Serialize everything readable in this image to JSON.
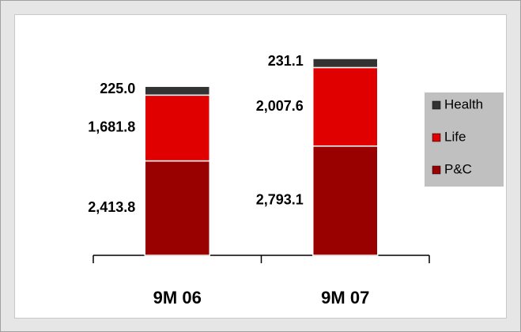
{
  "chart_data": {
    "type": "stacked-bar",
    "categories": [
      "9M 06",
      "9M 07"
    ],
    "series": [
      {
        "name": "P&C",
        "color": "#990000",
        "values": [
          2413.8,
          2793.1
        ],
        "value_labels": [
          "2,413.8",
          "2,793.1"
        ]
      },
      {
        "name": "Life",
        "color": "#e00000",
        "values": [
          1681.8,
          2007.6
        ],
        "value_labels": [
          "1,681.8",
          "2,007.6"
        ]
      },
      {
        "name": "Health",
        "color": "#333333",
        "values": [
          225.0,
          231.1
        ],
        "value_labels": [
          "225.0",
          "231.1"
        ]
      }
    ],
    "legend": "right"
  }
}
